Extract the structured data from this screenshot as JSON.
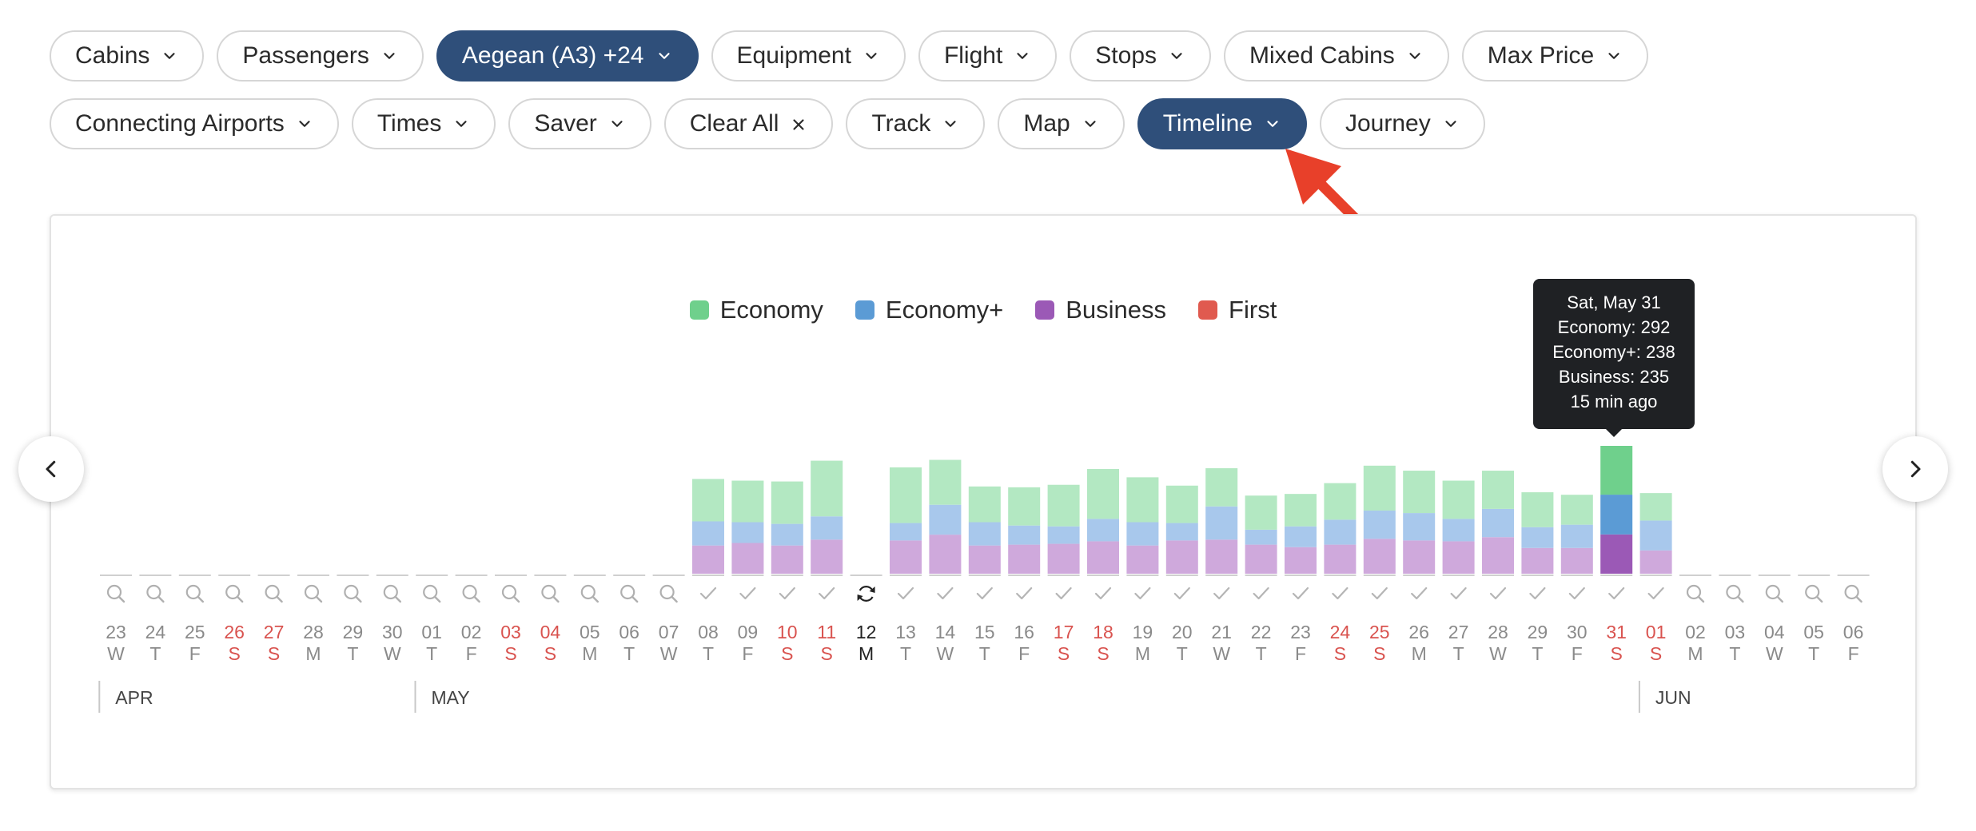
{
  "filters_row1": [
    {
      "label": "Cabins",
      "active": false,
      "icon": "chevron-down-icon"
    },
    {
      "label": "Passengers",
      "active": false,
      "icon": "chevron-down-icon"
    },
    {
      "label": "Aegean (A3) +24",
      "active": true,
      "icon": "chevron-down-icon"
    },
    {
      "label": "Equipment",
      "active": false,
      "icon": "chevron-down-icon"
    },
    {
      "label": "Flight",
      "active": false,
      "icon": "chevron-down-icon"
    },
    {
      "label": "Stops",
      "active": false,
      "icon": "chevron-down-icon"
    },
    {
      "label": "Mixed Cabins",
      "active": false,
      "icon": "chevron-down-icon"
    },
    {
      "label": "Max Price",
      "active": false,
      "icon": "chevron-down-icon"
    }
  ],
  "filters_row2": [
    {
      "label": "Connecting Airports",
      "active": false,
      "icon": "chevron-down-icon"
    },
    {
      "label": "Times",
      "active": false,
      "icon": "chevron-down-icon"
    },
    {
      "label": "Saver",
      "active": false,
      "icon": "chevron-down-icon"
    },
    {
      "label": "Clear All",
      "active": false,
      "icon": "close-icon"
    },
    {
      "label": "Track",
      "active": false,
      "icon": "chevron-down-icon"
    },
    {
      "label": "Map",
      "active": false,
      "icon": "chevron-down-icon"
    },
    {
      "label": "Timeline",
      "active": true,
      "icon": "chevron-down-icon"
    },
    {
      "label": "Journey",
      "active": false,
      "icon": "chevron-down-icon"
    }
  ],
  "colors": {
    "active_chip": "#2f4f7a",
    "economy": "#6fd08c",
    "economy_plus": "#5b9bd5",
    "business": "#9b59b6",
    "first": "#e05a4f",
    "weekend_text": "#d9534f",
    "annotation_arrow": "#e8402a"
  },
  "legend": [
    {
      "label": "Economy",
      "color": "#6fd08c"
    },
    {
      "label": "Economy+",
      "color": "#5b9bd5"
    },
    {
      "label": "Business",
      "color": "#9b59b6"
    },
    {
      "label": "First",
      "color": "#e05a4f"
    }
  ],
  "tooltip": {
    "title": "Sat, May 31",
    "economy": "Economy: 292",
    "economy_plus": "Economy+: 238",
    "business": "Business: 235",
    "updated": "15 min ago"
  },
  "nav": {
    "prev_icon": "chevron-left-icon",
    "next_icon": "chevron-right-icon"
  },
  "chart_data": {
    "type": "bar",
    "stacked": true,
    "highlighted_date": "31",
    "series_order": [
      "business",
      "economy_plus",
      "economy"
    ],
    "days": [
      {
        "date": "23",
        "dow": "W",
        "month": "APR",
        "weekend": false,
        "status": "search"
      },
      {
        "date": "24",
        "dow": "T",
        "weekend": false,
        "status": "search"
      },
      {
        "date": "25",
        "dow": "F",
        "weekend": false,
        "status": "search"
      },
      {
        "date": "26",
        "dow": "S",
        "weekend": true,
        "status": "search"
      },
      {
        "date": "27",
        "dow": "S",
        "weekend": true,
        "status": "search"
      },
      {
        "date": "28",
        "dow": "M",
        "weekend": false,
        "status": "search"
      },
      {
        "date": "29",
        "dow": "T",
        "weekend": false,
        "status": "search"
      },
      {
        "date": "30",
        "dow": "W",
        "weekend": false,
        "status": "search"
      },
      {
        "date": "01",
        "dow": "T",
        "month": "MAY",
        "weekend": false,
        "status": "search"
      },
      {
        "date": "02",
        "dow": "F",
        "weekend": false,
        "status": "search"
      },
      {
        "date": "03",
        "dow": "S",
        "weekend": true,
        "status": "search"
      },
      {
        "date": "04",
        "dow": "S",
        "weekend": true,
        "status": "search"
      },
      {
        "date": "05",
        "dow": "M",
        "weekend": false,
        "status": "search"
      },
      {
        "date": "06",
        "dow": "T",
        "weekend": false,
        "status": "search"
      },
      {
        "date": "07",
        "dow": "W",
        "weekend": false,
        "status": "search"
      },
      {
        "date": "08",
        "dow": "T",
        "weekend": false,
        "status": "check",
        "business": 34,
        "economy_plus": 29,
        "economy": 51
      },
      {
        "date": "09",
        "dow": "F",
        "weekend": false,
        "status": "check",
        "business": 37,
        "economy_plus": 25,
        "economy": 50
      },
      {
        "date": "10",
        "dow": "S",
        "weekend": true,
        "status": "check",
        "business": 34,
        "economy_plus": 26,
        "economy": 51
      },
      {
        "date": "11",
        "dow": "S",
        "weekend": true,
        "status": "check",
        "business": 41,
        "economy_plus": 28,
        "economy": 67
      },
      {
        "date": "12",
        "dow": "M",
        "weekend": false,
        "status": "loading",
        "today": true
      },
      {
        "date": "13",
        "dow": "T",
        "weekend": false,
        "status": "check",
        "business": 40,
        "economy_plus": 21,
        "economy": 67
      },
      {
        "date": "14",
        "dow": "W",
        "weekend": false,
        "status": "check",
        "business": 47,
        "economy_plus": 36,
        "economy": 54
      },
      {
        "date": "15",
        "dow": "T",
        "weekend": false,
        "status": "check",
        "business": 34,
        "economy_plus": 28,
        "economy": 43
      },
      {
        "date": "16",
        "dow": "F",
        "weekend": false,
        "status": "check",
        "business": 35,
        "economy_plus": 23,
        "economy": 46
      },
      {
        "date": "17",
        "dow": "S",
        "weekend": true,
        "status": "check",
        "business": 36,
        "economy_plus": 21,
        "economy": 50
      },
      {
        "date": "18",
        "dow": "S",
        "weekend": true,
        "status": "check",
        "business": 39,
        "economy_plus": 27,
        "economy": 60
      },
      {
        "date": "19",
        "dow": "M",
        "weekend": false,
        "status": "check",
        "business": 34,
        "economy_plus": 28,
        "economy": 54
      },
      {
        "date": "20",
        "dow": "T",
        "weekend": false,
        "status": "check",
        "business": 40,
        "economy_plus": 21,
        "economy": 45
      },
      {
        "date": "21",
        "dow": "W",
        "weekend": false,
        "status": "check",
        "business": 41,
        "economy_plus": 40,
        "economy": 46
      },
      {
        "date": "22",
        "dow": "T",
        "weekend": false,
        "status": "check",
        "business": 35,
        "economy_plus": 18,
        "economy": 41
      },
      {
        "date": "23",
        "dow": "F",
        "weekend": false,
        "status": "check",
        "business": 32,
        "economy_plus": 25,
        "economy": 39
      },
      {
        "date": "24",
        "dow": "S",
        "weekend": true,
        "status": "check",
        "business": 35,
        "economy_plus": 30,
        "economy": 44
      },
      {
        "date": "25",
        "dow": "S",
        "weekend": true,
        "status": "check",
        "business": 42,
        "economy_plus": 34,
        "economy": 54
      },
      {
        "date": "26",
        "dow": "M",
        "weekend": false,
        "status": "check",
        "business": 40,
        "economy_plus": 33,
        "economy": 51
      },
      {
        "date": "27",
        "dow": "T",
        "weekend": false,
        "status": "check",
        "business": 39,
        "economy_plus": 27,
        "economy": 46
      },
      {
        "date": "28",
        "dow": "W",
        "weekend": false,
        "status": "check",
        "business": 44,
        "economy_plus": 34,
        "economy": 46
      },
      {
        "date": "29",
        "dow": "T",
        "weekend": false,
        "status": "check",
        "business": 31,
        "economy_plus": 25,
        "economy": 42
      },
      {
        "date": "30",
        "dow": "F",
        "weekend": false,
        "status": "check",
        "business": 31,
        "economy_plus": 28,
        "economy": 36
      },
      {
        "date": "31",
        "dow": "S",
        "weekend": true,
        "status": "check",
        "business": 235,
        "economy_plus": 238,
        "economy": 292
      },
      {
        "date": "01",
        "dow": "S",
        "month": "JUN",
        "weekend": true,
        "status": "check",
        "business": 28,
        "economy_plus": 36,
        "economy": 33
      },
      {
        "date": "02",
        "dow": "M",
        "weekend": false,
        "status": "search"
      },
      {
        "date": "03",
        "dow": "T",
        "weekend": false,
        "status": "search"
      },
      {
        "date": "04",
        "dow": "W",
        "weekend": false,
        "status": "search"
      },
      {
        "date": "05",
        "dow": "T",
        "weekend": false,
        "status": "search"
      },
      {
        "date": "06",
        "dow": "F",
        "weekend": false,
        "status": "search"
      }
    ]
  }
}
